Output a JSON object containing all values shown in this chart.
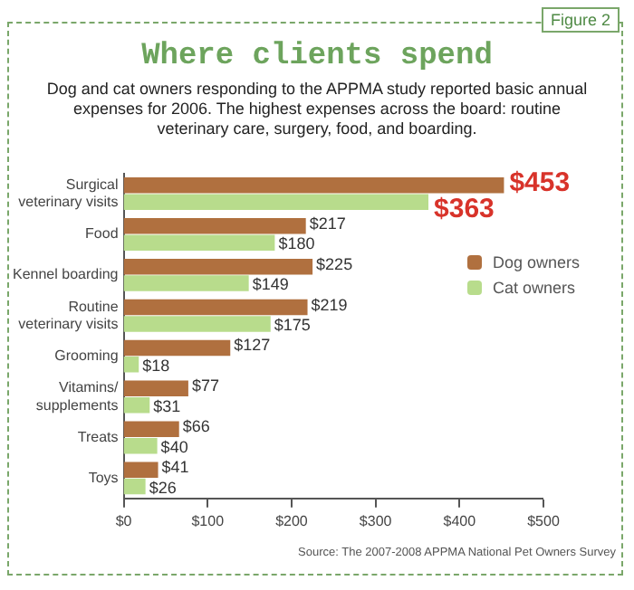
{
  "chart_data": {
    "type": "bar",
    "orientation": "horizontal",
    "title": "Where clients spend",
    "subtitle": "Dog and cat owners responding to the APPMA study reported basic annual expenses for 2006. The highest expenses across the board: routine veterinary care, surgery, food, and boarding.",
    "annotations": [
      "Figure 2",
      "Source: The 2007-2008 APPMA National Pet Owners Survey"
    ],
    "categories": [
      "Surgical veterinary visits",
      "Food",
      "Kennel boarding",
      "Routine veterinary visits",
      "Grooming",
      "Vitamins/ supplements",
      "Treats",
      "Toys"
    ],
    "series": [
      {
        "name": "Dog owners",
        "color": "#b0703f",
        "values": [
          453,
          217,
          225,
          219,
          127,
          77,
          66,
          41
        ],
        "value_labels": [
          "$453",
          "$217",
          "$225",
          "$219",
          "$127",
          "$77",
          "$66",
          "$41"
        ]
      },
      {
        "name": "Cat owners",
        "color": "#b8dc8c",
        "values": [
          363,
          180,
          149,
          175,
          18,
          31,
          40,
          26
        ],
        "value_labels": [
          "$363",
          "$180",
          "$149",
          "$175",
          "$18",
          "$31",
          "$40",
          "$26"
        ]
      }
    ],
    "xlim": [
      0,
      500
    ],
    "xticks": [
      {
        "value": 0,
        "label": "$0"
      },
      {
        "value": 100,
        "label": "$100"
      },
      {
        "value": 200,
        "label": "$200"
      },
      {
        "value": 300,
        "label": "$300"
      },
      {
        "value": 400,
        "label": "$400"
      },
      {
        "value": 500,
        "label": "$500"
      }
    ],
    "legend": "right"
  }
}
